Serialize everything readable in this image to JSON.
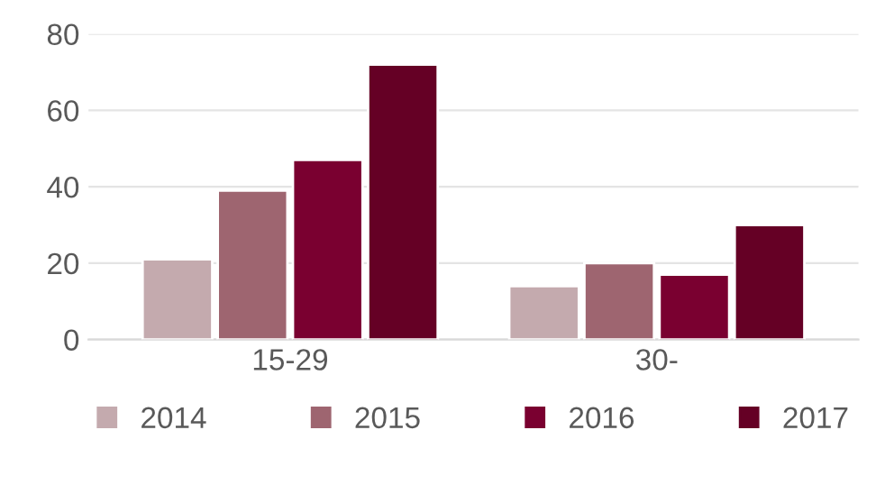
{
  "chart_data": {
    "type": "bar",
    "categories": [
      "15-29",
      "30-"
    ],
    "series": [
      {
        "name": "2014",
        "color": "#c4aaae",
        "values": [
          21,
          14
        ]
      },
      {
        "name": "2015",
        "color": "#9e6570",
        "values": [
          39,
          20
        ]
      },
      {
        "name": "2016",
        "color": "#7a0030",
        "values": [
          47,
          17
        ]
      },
      {
        "name": "2017",
        "color": "#650025",
        "values": [
          72,
          30
        ]
      }
    ],
    "ylim": [
      0,
      80
    ],
    "yticks": [
      0,
      20,
      40,
      60,
      80
    ],
    "grid": "y",
    "legend": "bottom"
  }
}
